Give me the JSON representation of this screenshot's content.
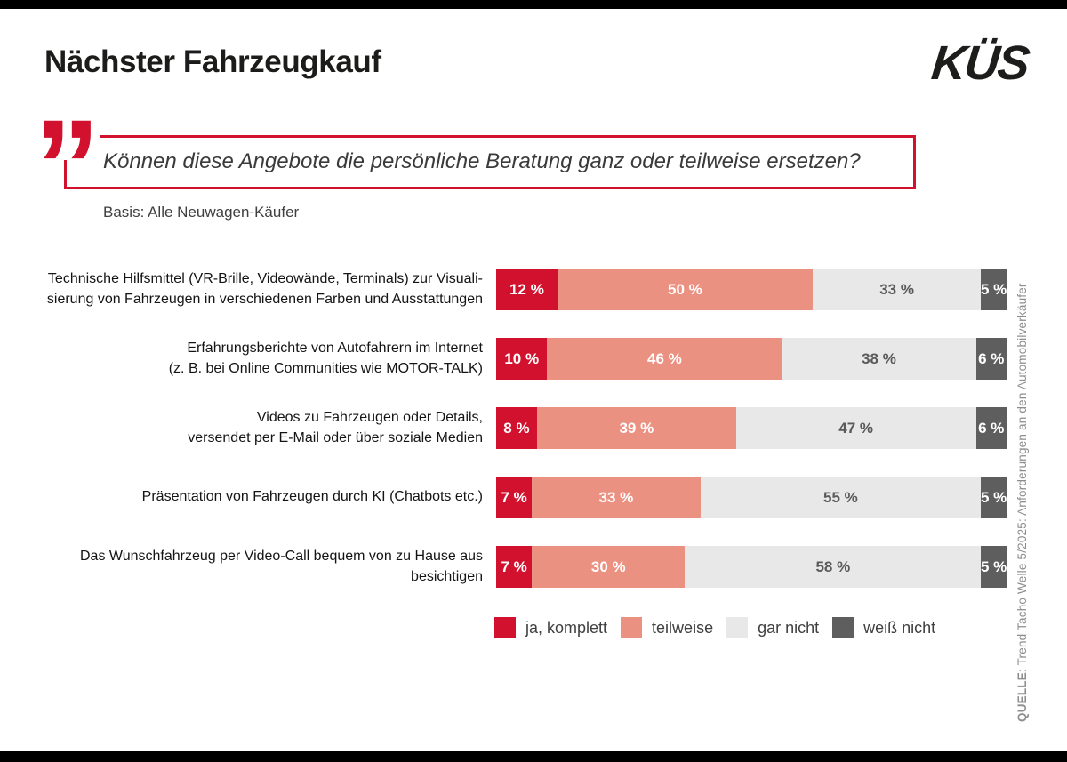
{
  "header": {
    "title": "Nächster Fahrzeugkauf",
    "logo": "KÜS"
  },
  "question": {
    "quote_mark": "”",
    "text": "Können diese Angebote die persönliche Beratung ganz oder teilweise ersetzen?",
    "basis": "Basis: Alle Neuwagen-Käufer"
  },
  "chart_data": {
    "type": "bar",
    "orientation": "horizontal",
    "stacked": true,
    "unit": "%",
    "value_suffix": " %",
    "xlim": [
      0,
      100
    ],
    "grid": false,
    "legend_position": "bottom",
    "categories": [
      {
        "lines": [
          "Technische Hilfsmittel (VR-Brille, Videowände, Terminals) zur Visuali-",
          "sierung von Fahrzeugen in verschiedenen Farben und Ausstattungen"
        ]
      },
      {
        "lines": [
          "Erfahrungsberichte von Autofahrern im Internet",
          "(z. B. bei Online Communities wie MOTOR-TALK)"
        ]
      },
      {
        "lines": [
          "Videos zu Fahrzeugen oder Details,",
          "versendet per E-Mail oder über soziale Medien"
        ]
      },
      {
        "lines": [
          "Präsentation von Fahrzeugen durch KI (Chatbots etc.)"
        ]
      },
      {
        "lines": [
          "Das Wunschfahrzeug per Video-Call bequem von zu Hause aus",
          "besichtigen"
        ]
      }
    ],
    "series": [
      {
        "name": "ja, komplett",
        "color": "#d2112e",
        "text_color": "#ffffff",
        "values": [
          12,
          10,
          8,
          7,
          7
        ]
      },
      {
        "name": "teilweise",
        "color": "#eb9181",
        "text_color": "#ffffff",
        "values": [
          50,
          46,
          39,
          33,
          30
        ]
      },
      {
        "name": "gar nicht",
        "color": "#e8e8e8",
        "text_color": "#5a5a5a",
        "values": [
          33,
          38,
          47,
          55,
          58
        ]
      },
      {
        "name": "weiß nicht",
        "color": "#5f5e5e",
        "text_color": "#ffffff",
        "values": [
          5,
          6,
          6,
          5,
          5
        ]
      }
    ]
  },
  "source": {
    "label": "QUELLE",
    "text": ": Trend Tacho Welle 5/2025: Anforderungen an den Automobilverkäufer"
  }
}
